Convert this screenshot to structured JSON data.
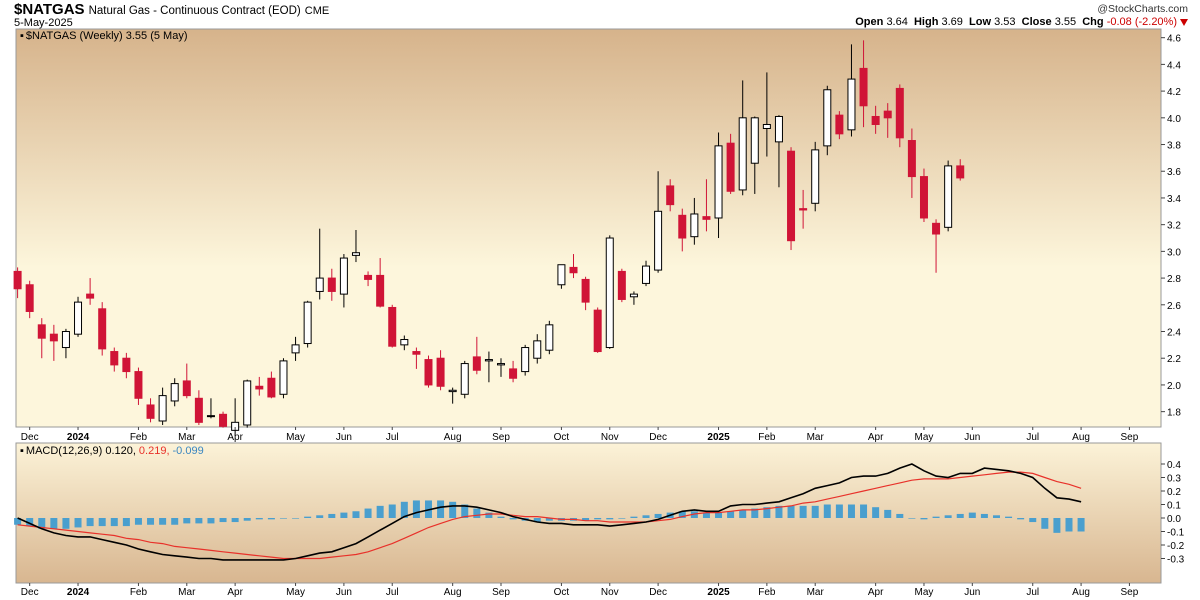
{
  "header": {
    "symbol": "$NATGAS",
    "description": "Natural Gas - Continuous Contract (EOD)",
    "exchange": "CME",
    "date": "5-May-2025",
    "watermark": "@StockCharts.com",
    "open_label": "Open",
    "open": "3.64",
    "high_label": "High",
    "high": "3.69",
    "low_label": "Low",
    "low": "3.53",
    "close_label": "Close",
    "close": "3.55",
    "chg_label": "Chg",
    "chg": "-0.08 (-2.20%)"
  },
  "price_panel": {
    "legend": "$NATGAS (Weekly) 3.55 (5 May)"
  },
  "macd_panel": {
    "legend_prefix": "MACD(12,26,9)",
    "macd_value": "0.120,",
    "signal_value": "0.219,",
    "hist_value": "-0.099"
  },
  "colors": {
    "up": "#ffffff",
    "down": "#d01437",
    "line": "#000000",
    "signal": "#e8312a",
    "hist": "#4a9fce",
    "bg_top": "#d8b690",
    "bg_mid": "#fdf6dd"
  },
  "chart_data": [
    {
      "type": "candlestick",
      "title": "$NATGAS (Weekly) 3.55 (5 May)",
      "ylim": [
        1.6,
        4.7
      ],
      "y_ticks": [
        1.8,
        2.0,
        2.2,
        2.4,
        2.6,
        2.8,
        3.0,
        3.2,
        3.4,
        3.6,
        3.8,
        4.0,
        4.2,
        4.4,
        4.6
      ],
      "x_tick_labels": [
        "Dec",
        "2024",
        "Feb",
        "Mar",
        "Apr",
        "May",
        "Jun",
        "Jul",
        "Aug",
        "Sep",
        "Oct",
        "Nov",
        "Dec",
        "2025",
        "Feb",
        "Mar",
        "Apr",
        "May",
        "Jun",
        "Jul",
        "Aug",
        "Sep"
      ],
      "x_tick_weeks": [
        1,
        5,
        10,
        14,
        18,
        23,
        27,
        31,
        36,
        40,
        45,
        49,
        53,
        58,
        62,
        66,
        71,
        75,
        79,
        84,
        88,
        92
      ],
      "grid": false,
      "candles": [
        {
          "o": 2.85,
          "h": 2.88,
          "l": 2.65,
          "c": 2.72
        },
        {
          "o": 2.75,
          "h": 2.78,
          "l": 2.5,
          "c": 2.55
        },
        {
          "o": 2.45,
          "h": 2.5,
          "l": 2.2,
          "c": 2.35
        },
        {
          "o": 2.38,
          "h": 2.45,
          "l": 2.18,
          "c": 2.33
        },
        {
          "o": 2.28,
          "h": 2.42,
          "l": 2.2,
          "c": 2.4
        },
        {
          "o": 2.38,
          "h": 2.66,
          "l": 2.36,
          "c": 2.62
        },
        {
          "o": 2.68,
          "h": 2.8,
          "l": 2.6,
          "c": 2.65
        },
        {
          "o": 2.57,
          "h": 2.62,
          "l": 2.22,
          "c": 2.27
        },
        {
          "o": 2.25,
          "h": 2.28,
          "l": 2.1,
          "c": 2.15
        },
        {
          "o": 2.2,
          "h": 2.24,
          "l": 2.05,
          "c": 2.1
        },
        {
          "o": 2.1,
          "h": 2.13,
          "l": 1.85,
          "c": 1.9
        },
        {
          "o": 1.85,
          "h": 1.9,
          "l": 1.72,
          "c": 1.75
        },
        {
          "o": 1.73,
          "h": 1.98,
          "l": 1.7,
          "c": 1.92
        },
        {
          "o": 1.88,
          "h": 2.05,
          "l": 1.84,
          "c": 2.01
        },
        {
          "o": 2.03,
          "h": 2.16,
          "l": 1.9,
          "c": 1.92
        },
        {
          "o": 1.9,
          "h": 1.96,
          "l": 1.7,
          "c": 1.72
        },
        {
          "o": 1.77,
          "h": 1.9,
          "l": 1.75,
          "c": 1.77
        },
        {
          "o": 1.78,
          "h": 1.8,
          "l": 1.68,
          "c": 1.69
        },
        {
          "o": 1.66,
          "h": 1.9,
          "l": 1.62,
          "c": 1.72
        },
        {
          "o": 1.7,
          "h": 2.04,
          "l": 1.68,
          "c": 2.03
        },
        {
          "o": 1.99,
          "h": 2.06,
          "l": 1.92,
          "c": 1.97
        },
        {
          "o": 2.05,
          "h": 2.1,
          "l": 1.9,
          "c": 1.91
        },
        {
          "o": 1.93,
          "h": 2.2,
          "l": 1.9,
          "c": 2.18
        },
        {
          "o": 2.24,
          "h": 2.36,
          "l": 2.18,
          "c": 2.3
        },
        {
          "o": 2.31,
          "h": 2.63,
          "l": 2.28,
          "c": 2.62
        },
        {
          "o": 2.7,
          "h": 3.17,
          "l": 2.64,
          "c": 2.8
        },
        {
          "o": 2.8,
          "h": 2.87,
          "l": 2.63,
          "c": 2.7
        },
        {
          "o": 2.68,
          "h": 2.98,
          "l": 2.58,
          "c": 2.95
        },
        {
          "o": 2.97,
          "h": 3.16,
          "l": 2.92,
          "c": 2.99
        },
        {
          "o": 2.82,
          "h": 2.85,
          "l": 2.74,
          "c": 2.79
        },
        {
          "o": 2.82,
          "h": 2.95,
          "l": 2.58,
          "c": 2.59
        },
        {
          "o": 2.58,
          "h": 2.6,
          "l": 2.28,
          "c": 2.29
        },
        {
          "o": 2.3,
          "h": 2.37,
          "l": 2.26,
          "c": 2.34
        },
        {
          "o": 2.25,
          "h": 2.28,
          "l": 2.12,
          "c": 2.23
        },
        {
          "o": 2.19,
          "h": 2.22,
          "l": 1.98,
          "c": 2.0
        },
        {
          "o": 2.2,
          "h": 2.26,
          "l": 1.96,
          "c": 1.99
        },
        {
          "o": 1.95,
          "h": 1.98,
          "l": 1.86,
          "c": 1.96
        },
        {
          "o": 1.93,
          "h": 2.18,
          "l": 1.9,
          "c": 2.16
        },
        {
          "o": 2.21,
          "h": 2.36,
          "l": 2.08,
          "c": 2.11
        },
        {
          "o": 2.18,
          "h": 2.25,
          "l": 2.02,
          "c": 2.19
        },
        {
          "o": 2.15,
          "h": 2.2,
          "l": 2.06,
          "c": 2.16
        },
        {
          "o": 2.12,
          "h": 2.18,
          "l": 2.02,
          "c": 2.05
        },
        {
          "o": 2.1,
          "h": 2.3,
          "l": 2.07,
          "c": 2.28
        },
        {
          "o": 2.2,
          "h": 2.38,
          "l": 2.16,
          "c": 2.33
        },
        {
          "o": 2.26,
          "h": 2.48,
          "l": 2.23,
          "c": 2.45
        },
        {
          "o": 2.75,
          "h": 2.9,
          "l": 2.72,
          "c": 2.9
        },
        {
          "o": 2.88,
          "h": 2.98,
          "l": 2.8,
          "c": 2.84
        },
        {
          "o": 2.79,
          "h": 2.81,
          "l": 2.56,
          "c": 2.62
        },
        {
          "o": 2.56,
          "h": 2.58,
          "l": 2.24,
          "c": 2.25
        },
        {
          "o": 2.28,
          "h": 3.12,
          "l": 2.27,
          "c": 3.1
        },
        {
          "o": 2.85,
          "h": 2.87,
          "l": 2.62,
          "c": 2.64
        },
        {
          "o": 2.66,
          "h": 2.7,
          "l": 2.6,
          "c": 2.68
        },
        {
          "o": 2.76,
          "h": 2.93,
          "l": 2.74,
          "c": 2.89
        },
        {
          "o": 2.86,
          "h": 3.6,
          "l": 2.84,
          "c": 3.3
        },
        {
          "o": 3.49,
          "h": 3.54,
          "l": 3.3,
          "c": 3.35
        },
        {
          "o": 3.27,
          "h": 3.32,
          "l": 3.0,
          "c": 3.1
        },
        {
          "o": 3.11,
          "h": 3.4,
          "l": 3.05,
          "c": 3.28
        },
        {
          "o": 3.26,
          "h": 3.54,
          "l": 3.15,
          "c": 3.24
        },
        {
          "o": 3.25,
          "h": 3.89,
          "l": 3.1,
          "c": 3.79
        },
        {
          "o": 3.81,
          "h": 3.88,
          "l": 3.43,
          "c": 3.45
        },
        {
          "o": 3.46,
          "h": 4.28,
          "l": 3.42,
          "c": 4.0
        },
        {
          "o": 3.66,
          "h": 4.01,
          "l": 3.43,
          "c": 4.0
        },
        {
          "o": 3.92,
          "h": 4.34,
          "l": 3.71,
          "c": 3.95
        },
        {
          "o": 3.82,
          "h": 4.02,
          "l": 3.48,
          "c": 4.01
        },
        {
          "o": 3.75,
          "h": 3.78,
          "l": 3.01,
          "c": 3.08
        },
        {
          "o": 3.32,
          "h": 3.46,
          "l": 3.17,
          "c": 3.31
        },
        {
          "o": 3.36,
          "h": 3.82,
          "l": 3.3,
          "c": 3.76
        },
        {
          "o": 3.79,
          "h": 4.24,
          "l": 3.72,
          "c": 4.21
        },
        {
          "o": 4.02,
          "h": 4.05,
          "l": 3.84,
          "c": 3.88
        },
        {
          "o": 3.91,
          "h": 4.55,
          "l": 3.86,
          "c": 4.29
        },
        {
          "o": 4.37,
          "h": 4.58,
          "l": 3.93,
          "c": 4.09
        },
        {
          "o": 4.01,
          "h": 4.09,
          "l": 3.88,
          "c": 3.95
        },
        {
          "o": 4.05,
          "h": 4.11,
          "l": 3.85,
          "c": 4.0
        },
        {
          "o": 4.22,
          "h": 4.25,
          "l": 3.78,
          "c": 3.85
        },
        {
          "o": 3.83,
          "h": 3.92,
          "l": 3.4,
          "c": 3.56
        },
        {
          "o": 3.56,
          "h": 3.62,
          "l": 3.22,
          "c": 3.25
        },
        {
          "o": 3.21,
          "h": 3.24,
          "l": 2.84,
          "c": 3.13
        },
        {
          "o": 3.18,
          "h": 3.68,
          "l": 3.15,
          "c": 3.64
        },
        {
          "o": 3.64,
          "h": 3.69,
          "l": 3.53,
          "c": 3.55
        }
      ]
    },
    {
      "type": "line",
      "title": "MACD(12,26,9) 0.120, 0.219, -0.099",
      "ylim": [
        -0.35,
        0.45
      ],
      "y_ticks": [
        -0.3,
        -0.2,
        -0.1,
        0.0,
        0.1,
        0.2,
        0.3,
        0.4
      ],
      "x_tick_labels": [
        "Dec",
        "2024",
        "Feb",
        "Mar",
        "Apr",
        "May",
        "Jun",
        "Jul",
        "Aug",
        "Sep",
        "Oct",
        "Nov",
        "Dec",
        "2025",
        "Feb",
        "Mar",
        "Apr",
        "May",
        "Jun",
        "Jul",
        "Aug",
        "Sep"
      ],
      "x_tick_weeks": [
        1,
        5,
        10,
        14,
        18,
        23,
        27,
        31,
        36,
        40,
        45,
        49,
        53,
        58,
        62,
        66,
        71,
        75,
        79,
        84,
        88,
        92
      ],
      "series": [
        {
          "name": "MACD(12,26,9)",
          "values": [
            0.0,
            -0.04,
            -0.08,
            -0.11,
            -0.13,
            -0.14,
            -0.14,
            -0.16,
            -0.18,
            -0.2,
            -0.23,
            -0.25,
            -0.27,
            -0.28,
            -0.29,
            -0.3,
            -0.3,
            -0.31,
            -0.31,
            -0.31,
            -0.31,
            -0.31,
            -0.31,
            -0.3,
            -0.28,
            -0.26,
            -0.25,
            -0.22,
            -0.19,
            -0.14,
            -0.09,
            -0.04,
            0.01,
            0.04,
            0.06,
            0.08,
            0.09,
            0.09,
            0.08,
            0.06,
            0.04,
            0.01,
            -0.01,
            -0.03,
            -0.04,
            -0.04,
            -0.05,
            -0.05,
            -0.05,
            -0.06,
            -0.05,
            -0.04,
            -0.03,
            -0.01,
            0.02,
            0.05,
            0.06,
            0.05,
            0.05,
            0.09,
            0.1,
            0.1,
            0.11,
            0.12,
            0.15,
            0.18,
            0.22,
            0.24,
            0.26,
            0.3,
            0.31,
            0.31,
            0.33,
            0.37,
            0.4,
            0.35,
            0.31,
            0.3,
            0.33,
            0.33,
            0.37,
            0.36,
            0.35,
            0.33,
            0.3,
            0.22,
            0.15,
            0.14,
            0.12
          ]
        },
        {
          "name": "signal",
          "values": [
            -0.05,
            -0.06,
            -0.07,
            -0.08,
            -0.09,
            -0.1,
            -0.11,
            -0.12,
            -0.13,
            -0.15,
            -0.16,
            -0.18,
            -0.19,
            -0.21,
            -0.22,
            -0.23,
            -0.24,
            -0.25,
            -0.26,
            -0.27,
            -0.28,
            -0.29,
            -0.3,
            -0.3,
            -0.3,
            -0.3,
            -0.29,
            -0.28,
            -0.27,
            -0.25,
            -0.22,
            -0.19,
            -0.15,
            -0.11,
            -0.07,
            -0.04,
            -0.01,
            0.01,
            0.02,
            0.03,
            0.03,
            0.02,
            0.01,
            0.01,
            0.0,
            -0.01,
            -0.01,
            -0.02,
            -0.02,
            -0.03,
            -0.03,
            -0.03,
            -0.03,
            -0.02,
            -0.01,
            0.01,
            0.03,
            0.04,
            0.04,
            0.05,
            0.06,
            0.06,
            0.07,
            0.08,
            0.09,
            0.11,
            0.12,
            0.14,
            0.16,
            0.18,
            0.2,
            0.22,
            0.24,
            0.26,
            0.28,
            0.29,
            0.29,
            0.29,
            0.3,
            0.31,
            0.32,
            0.33,
            0.34,
            0.34,
            0.33,
            0.3,
            0.27,
            0.25,
            0.22
          ]
        },
        {
          "name": "histogram",
          "values": [
            -0.05,
            -0.06,
            -0.08,
            -0.08,
            -0.08,
            -0.07,
            -0.06,
            -0.06,
            -0.06,
            -0.06,
            -0.05,
            -0.05,
            -0.05,
            -0.05,
            -0.04,
            -0.04,
            -0.04,
            -0.03,
            -0.03,
            -0.02,
            -0.01,
            -0.01,
            0.0,
            0.0,
            0.01,
            0.02,
            0.03,
            0.04,
            0.05,
            0.07,
            0.09,
            0.1,
            0.12,
            0.13,
            0.13,
            0.13,
            0.12,
            0.1,
            0.07,
            0.04,
            0.01,
            -0.01,
            -0.02,
            -0.03,
            -0.02,
            -0.02,
            -0.02,
            -0.02,
            -0.01,
            -0.01,
            0.0,
            0.01,
            0.02,
            0.03,
            0.04,
            0.05,
            0.05,
            0.04,
            0.04,
            0.05,
            0.06,
            0.07,
            0.08,
            0.09,
            0.09,
            0.09,
            0.09,
            0.1,
            0.1,
            0.1,
            0.1,
            0.08,
            0.06,
            0.03,
            0.0,
            -0.01,
            0.01,
            0.02,
            0.03,
            0.04,
            0.03,
            0.02,
            0.01,
            -0.01,
            -0.03,
            -0.08,
            -0.11,
            -0.1,
            -0.1
          ]
        }
      ]
    }
  ]
}
